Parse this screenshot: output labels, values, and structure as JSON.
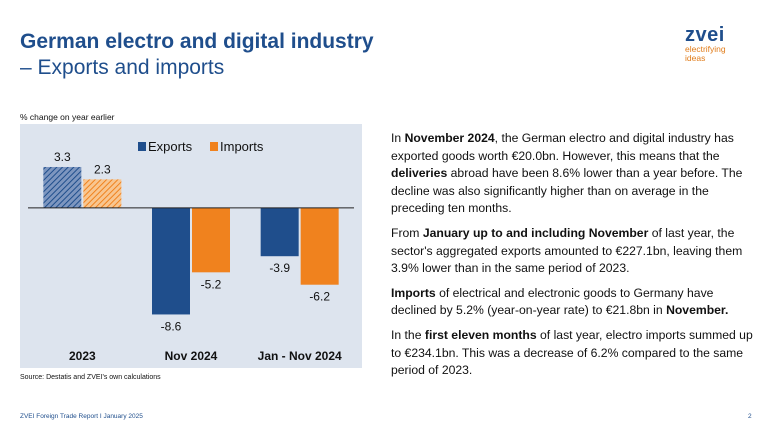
{
  "header": {
    "title": "German electro and digital industry",
    "subtitle": "– Exports and imports"
  },
  "logo": {
    "word": "zvei",
    "tagline": [
      "electrifying",
      "ideas"
    ]
  },
  "colors": {
    "exports": "#1f4e8c",
    "imports": "#f0821e",
    "chart_bg": "#dde4ee",
    "title": "#1f4e8c"
  },
  "chart_note": "% change on year earlier",
  "chart_data": {
    "type": "bar",
    "categories": [
      "2023",
      "Nov 2024",
      "Jan - Nov 2024"
    ],
    "series": [
      {
        "name": "Exports",
        "values": [
          3.3,
          -8.6,
          -3.9
        ]
      },
      {
        "name": "Imports",
        "values": [
          2.3,
          -5.2,
          -6.2
        ]
      }
    ],
    "value_labels": [
      [
        "3.3",
        "-8.6",
        "-3.9"
      ],
      [
        "2.3",
        "-5.2",
        "-6.2"
      ]
    ],
    "ylim": [
      -10.5,
      5.8
    ],
    "legend": "top-center",
    "grid": false,
    "first_category_hatched": true
  },
  "source": "Source: Destatis and ZVEI's own calculations",
  "body": {
    "p1": [
      {
        "t": "In "
      },
      {
        "t": "November 2024",
        "b": true
      },
      {
        "t": ", the German electro and digital industry has exported goods worth €20.0bn. However, this means that the "
      },
      {
        "t": "deliveries",
        "b": true
      },
      {
        "t": " abroad have been 8.6% lower than a year before. The decline was also significantly higher than on average in the preceding ten months."
      }
    ],
    "p2": [
      {
        "t": "From "
      },
      {
        "t": "January up to and including November",
        "b": true
      },
      {
        "t": " of last year, the sector's aggregated exports amounted to €227.1bn, leaving them 3.9% lower than in the same period of 2023."
      }
    ],
    "p3": [
      {
        "t": "Imports",
        "b": true
      },
      {
        "t": " of electrical and electronic goods to Germany have declined by 5.2% (year-on-year rate) to €21.8bn in "
      },
      {
        "t": "November.",
        "b": true
      }
    ],
    "p4": [
      {
        "t": "In the "
      },
      {
        "t": "first eleven months",
        "b": true
      },
      {
        "t": " of last year, electro imports summed up to €234.1bn. This was a decrease of 6.2% compared to the same period of 2023."
      }
    ]
  },
  "footer": {
    "left": "ZVEI Foreign Trade Report I January 2025",
    "page": "2"
  }
}
